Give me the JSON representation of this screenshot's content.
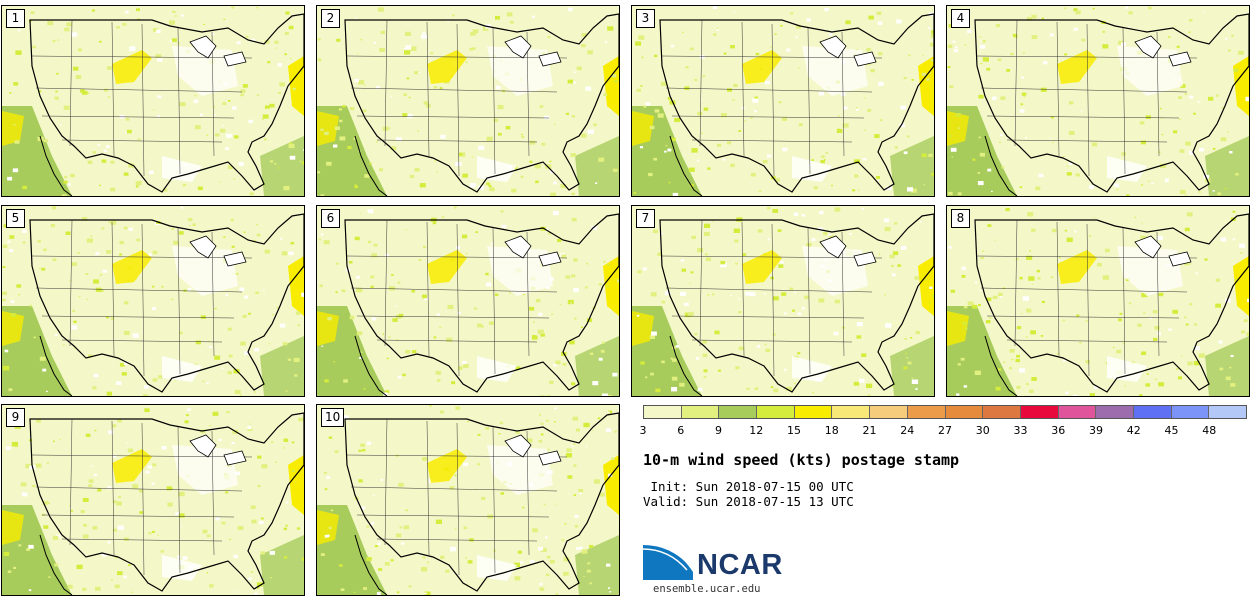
{
  "panels": [
    {
      "label": "1"
    },
    {
      "label": "2"
    },
    {
      "label": "3"
    },
    {
      "label": "4"
    },
    {
      "label": "5"
    },
    {
      "label": "6"
    },
    {
      "label": "7"
    },
    {
      "label": "8"
    },
    {
      "label": "9"
    },
    {
      "label": "10"
    }
  ],
  "colorbar": {
    "ticks": [
      "3",
      "6",
      "9",
      "12",
      "15",
      "18",
      "21",
      "24",
      "27",
      "30",
      "33",
      "36",
      "39",
      "42",
      "45",
      "48"
    ],
    "colors": [
      "#f4f8c8",
      "#e2f080",
      "#a8cc5c",
      "#d4ec3c",
      "#f8ec00",
      "#f8e878",
      "#f4cc7c",
      "#ec9c48",
      "#e68a3c",
      "#dc7840",
      "#e8083c",
      "#e0549c",
      "#9c6cac",
      "#6070f4",
      "#7c94f8",
      "#b4c8f8"
    ]
  },
  "title": "10-m wind speed (kts) postage stamp",
  "init": " Init: Sun 2018-07-15 00 UTC",
  "valid": "Valid: Sun 2018-07-15 13 UTC",
  "logo": {
    "text": "NCAR",
    "site": "ensemble.ucar.edu"
  }
}
